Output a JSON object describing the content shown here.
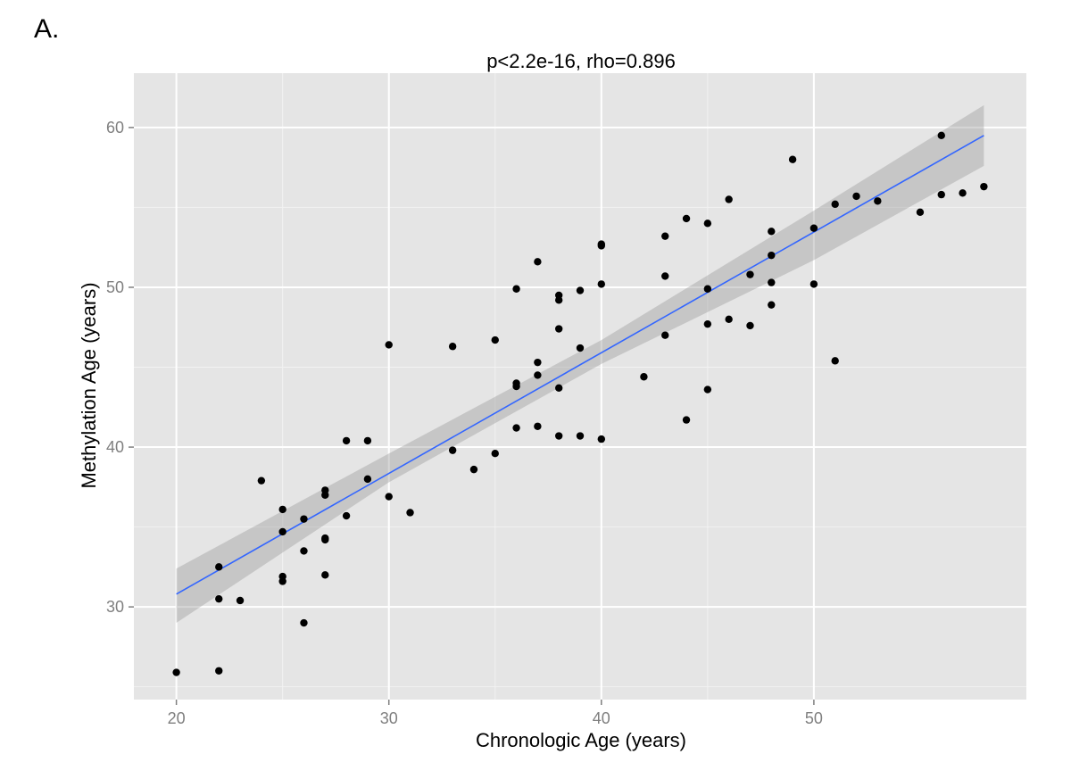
{
  "panel_label": "A.",
  "chart_data": {
    "type": "scatter",
    "title": "p<2.2e-16, rho=0.896",
    "xlabel": "Chronologic Age (years)",
    "ylabel": "Methylation Age (years)",
    "xlim": [
      18,
      60
    ],
    "ylim": [
      24.2,
      63.4
    ],
    "xticks": [
      20,
      30,
      40,
      50
    ],
    "yticks": [
      30,
      40,
      50,
      60
    ],
    "grid": true,
    "background": "#e5e5e5",
    "point_color": "#000000",
    "fit_color": "#3366ff",
    "band_color": "#999999",
    "fit": {
      "x": [
        20,
        58
      ],
      "y": [
        30.8,
        59.5
      ]
    },
    "band": {
      "x": [
        20,
        30,
        40,
        50,
        58
      ],
      "lower": [
        29.0,
        37.8,
        45.2,
        51.7,
        57.6
      ],
      "upper": [
        32.4,
        39.6,
        46.7,
        54.8,
        61.4
      ]
    },
    "points": [
      [
        20,
        25.9
      ],
      [
        22,
        26.0
      ],
      [
        22,
        30.5
      ],
      [
        22,
        32.5
      ],
      [
        23,
        30.4
      ],
      [
        24,
        37.9
      ],
      [
        25,
        31.9
      ],
      [
        25,
        31.6
      ],
      [
        25,
        34.7
      ],
      [
        25,
        36.1
      ],
      [
        26,
        29.0
      ],
      [
        26,
        33.5
      ],
      [
        26,
        35.5
      ],
      [
        27,
        32.0
      ],
      [
        27,
        34.2
      ],
      [
        27,
        34.3
      ],
      [
        27,
        37.0
      ],
      [
        27,
        37.3
      ],
      [
        28,
        35.7
      ],
      [
        28,
        40.4
      ],
      [
        29,
        38.0
      ],
      [
        29,
        40.4
      ],
      [
        30,
        36.9
      ],
      [
        30,
        46.4
      ],
      [
        31,
        35.9
      ],
      [
        33,
        39.8
      ],
      [
        33,
        46.3
      ],
      [
        34,
        38.6
      ],
      [
        35,
        39.6
      ],
      [
        35,
        46.7
      ],
      [
        36,
        41.2
      ],
      [
        36,
        43.8
      ],
      [
        36,
        44.0
      ],
      [
        36,
        49.9
      ],
      [
        37,
        41.3
      ],
      [
        37,
        44.5
      ],
      [
        37,
        45.3
      ],
      [
        37,
        51.6
      ],
      [
        38,
        40.7
      ],
      [
        38,
        43.7
      ],
      [
        38,
        47.4
      ],
      [
        38,
        49.2
      ],
      [
        38,
        49.5
      ],
      [
        39,
        40.7
      ],
      [
        39,
        46.2
      ],
      [
        39,
        49.8
      ],
      [
        40,
        40.5
      ],
      [
        40,
        50.2
      ],
      [
        40,
        52.6
      ],
      [
        40,
        52.7
      ],
      [
        42,
        44.4
      ],
      [
        43,
        47.0
      ],
      [
        43,
        50.7
      ],
      [
        43,
        53.2
      ],
      [
        44,
        41.7
      ],
      [
        44,
        54.3
      ],
      [
        45,
        43.6
      ],
      [
        45,
        47.7
      ],
      [
        45,
        49.9
      ],
      [
        45,
        54.0
      ],
      [
        46,
        48.0
      ],
      [
        46,
        55.5
      ],
      [
        47,
        47.6
      ],
      [
        47,
        50.8
      ],
      [
        48,
        48.9
      ],
      [
        48,
        50.3
      ],
      [
        48,
        52.0
      ],
      [
        48,
        53.5
      ],
      [
        49,
        58.0
      ],
      [
        50,
        50.2
      ],
      [
        50,
        53.7
      ],
      [
        51,
        45.4
      ],
      [
        51,
        55.2
      ],
      [
        52,
        55.7
      ],
      [
        53,
        55.4
      ],
      [
        55,
        54.7
      ],
      [
        56,
        55.8
      ],
      [
        56,
        59.5
      ],
      [
        57,
        55.9
      ],
      [
        58,
        56.3
      ]
    ]
  }
}
